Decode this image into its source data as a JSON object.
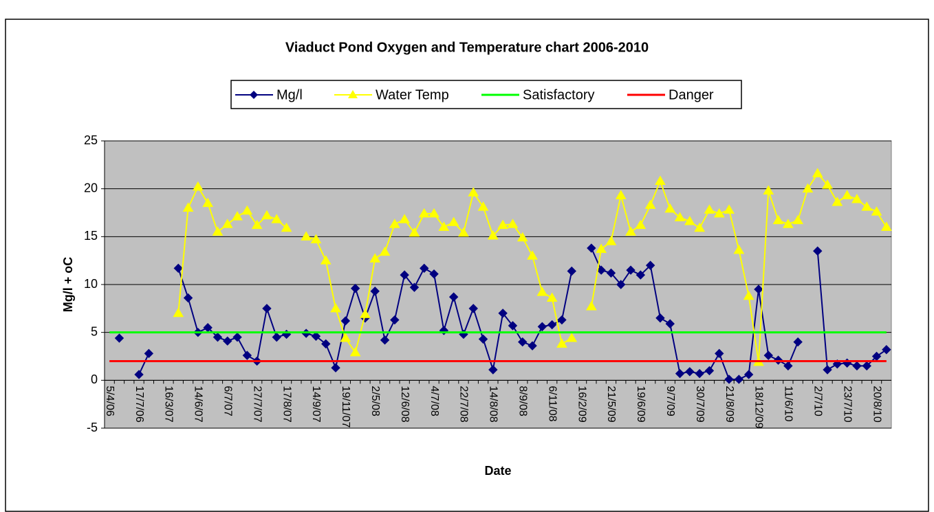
{
  "chart_data": {
    "type": "line",
    "title": "Viaduct Pond Oxygen and Temperature chart 2006-2010",
    "xlabel": "Date",
    "ylabel": "Mg/l + oC",
    "categories": [
      "5/4/06",
      null,
      null,
      "17/7/06",
      null,
      null,
      "16/3/07",
      null,
      null,
      "14/6/07",
      null,
      null,
      "6/7/07",
      null,
      null,
      "27/7/07",
      null,
      null,
      "17/8/07",
      null,
      null,
      "14/9/07",
      null,
      null,
      "19/11/07",
      null,
      null,
      "2/5/08",
      null,
      null,
      "12/6/08",
      null,
      null,
      "4/7/08",
      null,
      null,
      "22/7/08",
      null,
      null,
      "14/8/08",
      null,
      null,
      "8/9/08",
      null,
      null,
      "6/11/08",
      null,
      null,
      "16/2/09",
      null,
      null,
      "21/5/09",
      null,
      null,
      "19/6/09",
      null,
      null,
      "9/7/09",
      null,
      null,
      "30/7/09",
      null,
      null,
      "21/8/09",
      null,
      null,
      "18/12/09",
      null,
      null,
      "11/6/10",
      null,
      null,
      "2/7/10",
      null,
      null,
      "23/7/10",
      null,
      null,
      "20/8/10",
      null
    ],
    "series": [
      {
        "name": "Mg/l",
        "color": "#000080",
        "marker": "diamond",
        "values": [
          null,
          4.4,
          null,
          0.6,
          2.8,
          null,
          null,
          11.7,
          8.6,
          5.0,
          5.5,
          4.5,
          4.1,
          4.5,
          2.6,
          2.0,
          7.5,
          4.5,
          4.8,
          null,
          4.9,
          4.6,
          3.8,
          1.3,
          6.2,
          9.6,
          6.5,
          9.3,
          4.2,
          6.3,
          11.0,
          9.7,
          11.7,
          11.1,
          5.2,
          8.7,
          4.8,
          7.5,
          4.3,
          1.1,
          7.0,
          5.7,
          4.0,
          3.6,
          5.6,
          5.8,
          6.3,
          11.4,
          null,
          13.8,
          11.5,
          11.2,
          10.0,
          11.5,
          11.0,
          12.0,
          6.5,
          5.9,
          0.7,
          0.9,
          0.7,
          1.0,
          2.8,
          0.1,
          0.1,
          0.6,
          9.5,
          2.6,
          2.1,
          1.5,
          4.0,
          null,
          13.5,
          1.1,
          1.7,
          1.8,
          1.5,
          1.5,
          2.5,
          3.2
        ]
      },
      {
        "name": "Water Temp",
        "color": "#ffff00",
        "marker": "triangle",
        "values": [
          null,
          null,
          null,
          null,
          null,
          null,
          null,
          7.0,
          18.0,
          20.2,
          18.5,
          15.5,
          16.3,
          17.1,
          17.7,
          16.2,
          17.2,
          16.8,
          15.9,
          null,
          15.0,
          14.7,
          12.5,
          7.5,
          4.4,
          2.9,
          6.9,
          12.7,
          13.4,
          16.3,
          16.8,
          15.4,
          17.4,
          17.4,
          16.0,
          16.5,
          15.4,
          19.6,
          18.1,
          15.1,
          16.2,
          16.3,
          14.9,
          13.0,
          9.2,
          8.6,
          3.8,
          4.4,
          null,
          7.7,
          13.7,
          14.5,
          19.3,
          15.5,
          16.2,
          18.3,
          20.8,
          17.9,
          17.0,
          16.6,
          15.9,
          17.8,
          17.4,
          17.8,
          13.6,
          8.8,
          1.9,
          19.8,
          16.7,
          16.3,
          16.7,
          20.0,
          21.6,
          20.4,
          18.6,
          19.3,
          18.9,
          18.1,
          17.6,
          16.0
        ]
      },
      {
        "name": "Satisfactory",
        "color": "#00ff00",
        "marker": "none",
        "values": [
          5,
          5,
          5,
          5,
          5,
          5,
          5,
          5,
          5,
          5,
          5,
          5,
          5,
          5,
          5,
          5,
          5,
          5,
          5,
          5,
          5,
          5,
          5,
          5,
          5,
          5,
          5,
          5,
          5,
          5,
          5,
          5,
          5,
          5,
          5,
          5,
          5,
          5,
          5,
          5,
          5,
          5,
          5,
          5,
          5,
          5,
          5,
          5,
          5,
          5,
          5,
          5,
          5,
          5,
          5,
          5,
          5,
          5,
          5,
          5,
          5,
          5,
          5,
          5,
          5,
          5,
          5,
          5,
          5,
          5,
          5,
          5,
          5,
          5,
          5,
          5,
          5,
          5,
          5,
          5
        ]
      },
      {
        "name": "Danger",
        "color": "#ff0000",
        "marker": "none",
        "values": [
          2,
          2,
          2,
          2,
          2,
          2,
          2,
          2,
          2,
          2,
          2,
          2,
          2,
          2,
          2,
          2,
          2,
          2,
          2,
          2,
          2,
          2,
          2,
          2,
          2,
          2,
          2,
          2,
          2,
          2,
          2,
          2,
          2,
          2,
          2,
          2,
          2,
          2,
          2,
          2,
          2,
          2,
          2,
          2,
          2,
          2,
          2,
          2,
          2,
          2,
          2,
          2,
          2,
          2,
          2,
          2,
          2,
          2,
          2,
          2,
          2,
          2,
          2,
          2,
          2,
          2,
          2,
          2,
          2,
          2,
          2,
          2,
          2,
          2,
          2,
          2,
          2,
          2,
          2,
          2
        ]
      }
    ],
    "ylim": [
      -5,
      25
    ],
    "yticks": [
      -5,
      0,
      5,
      10,
      15,
      20,
      25
    ],
    "grid": true,
    "legend": "top"
  }
}
